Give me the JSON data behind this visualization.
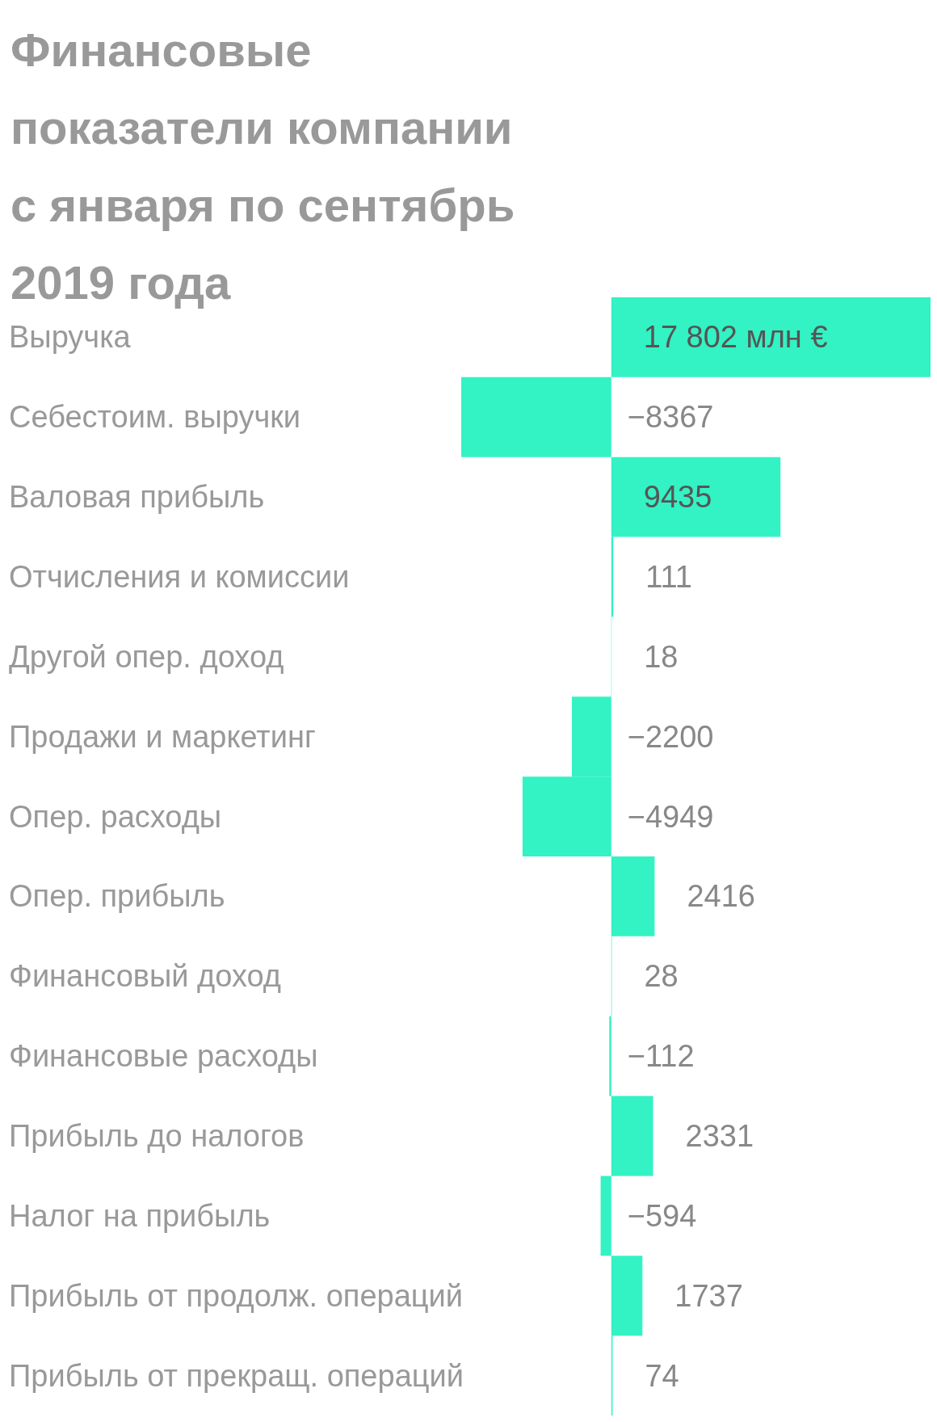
{
  "chart_data": {
    "type": "bar",
    "orientation": "horizontal",
    "title": "Финансовые показатели компании с января по сентябрь 2019 года",
    "categories": [
      "Выручка",
      "Себестоим. выручки",
      "Валовая прибыль",
      "Отчисления и комиссии",
      "Другой опер. доход",
      "Продажи и маркетинг",
      "Опер. расходы",
      "Опер. прибыль",
      "Финансовый доход",
      "Финансовые расходы",
      "Прибыль до налогов",
      "Налог на прибыль",
      "Прибыль от продолж. операций",
      "Прибыль от прекращ. операций"
    ],
    "values": [
      17802,
      -8367,
      9435,
      111,
      18,
      -2200,
      -4949,
      2416,
      28,
      -112,
      2331,
      -594,
      1737,
      74
    ],
    "value_labels": [
      "17 802 млн €",
      "−8367",
      "9435",
      "111",
      "18",
      "−2200",
      "−4949",
      "2416",
      "28",
      "−112",
      "2331",
      "−594",
      "1737",
      "74"
    ],
    "color": "#33f2c4"
  }
}
